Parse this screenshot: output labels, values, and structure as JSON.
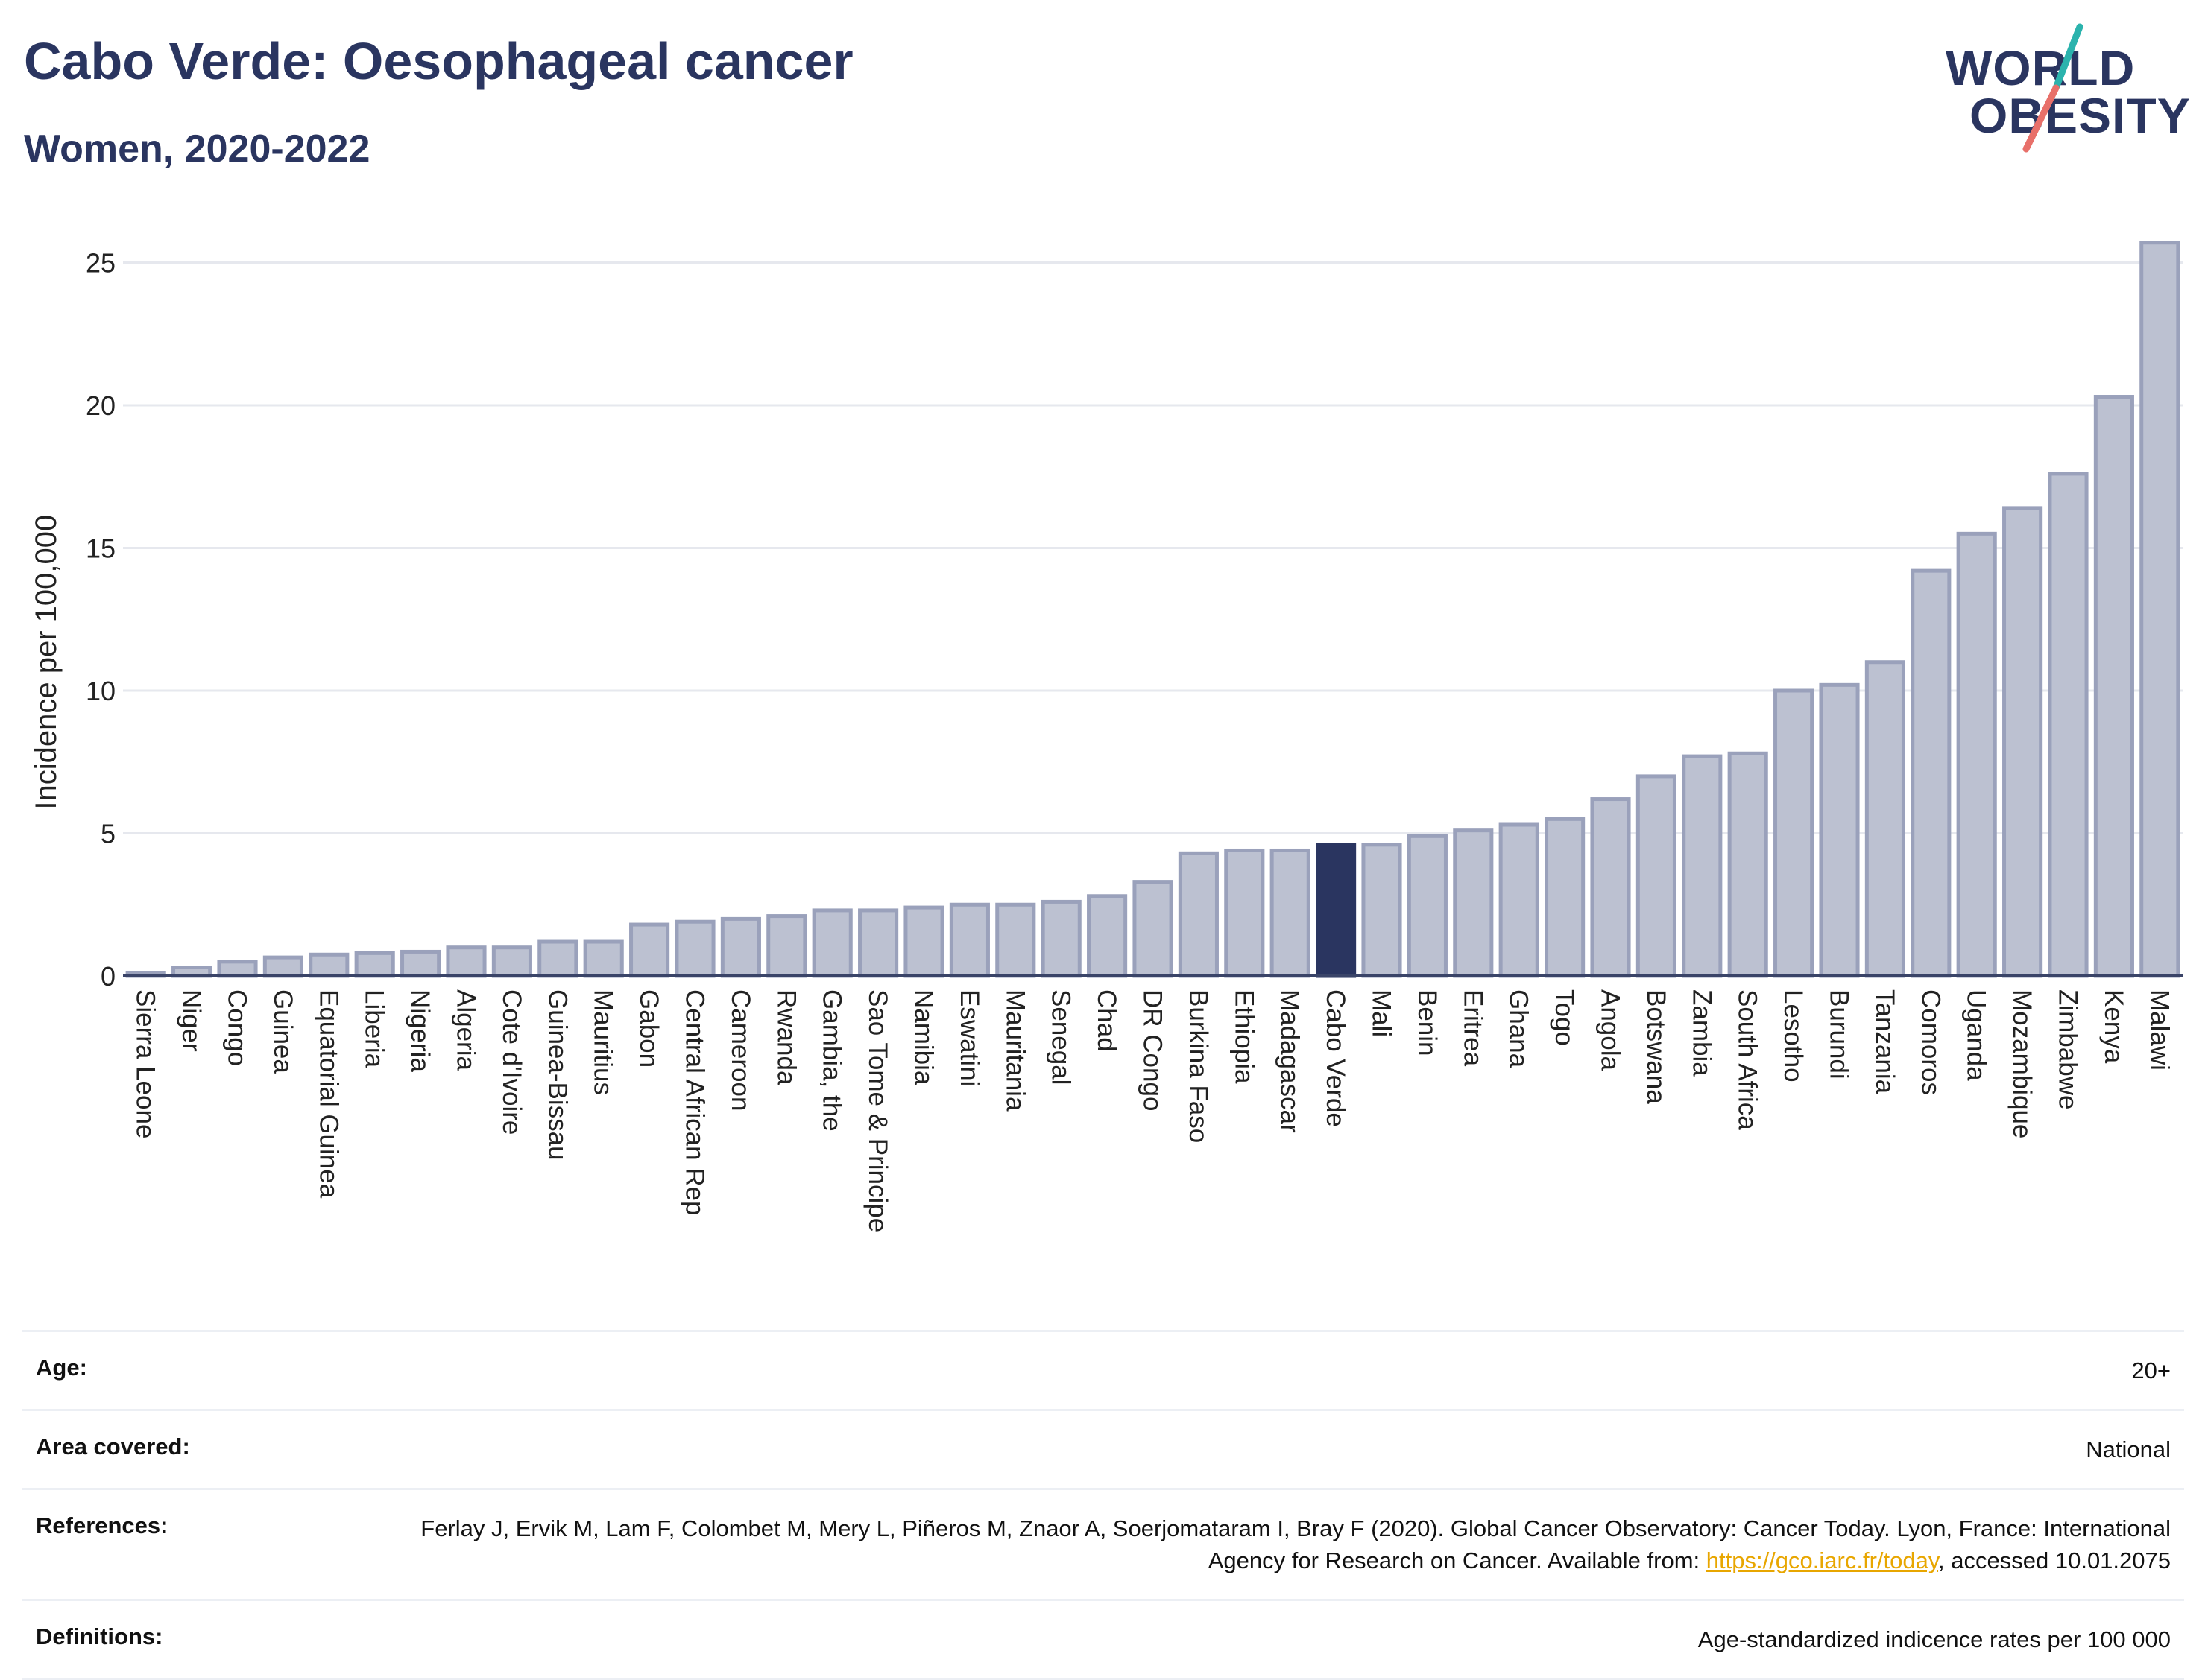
{
  "header": {
    "title": "Cabo Verde: Oesophageal cancer",
    "subtitle": "Women, 2020-2022"
  },
  "logo": {
    "line1": "WORLD",
    "line2": "OBESITY",
    "text_color": "#2a3560",
    "slash_color_top": "#2bb3ad",
    "slash_color_bottom": "#e8706a"
  },
  "colors": {
    "bar_fill": "#bcc1d1",
    "bar_stroke": "#9aa1bb",
    "highlight": "#2a3560",
    "grid": "#e6e8ee"
  },
  "chart_data": {
    "type": "bar",
    "title": "Cabo Verde: Oesophageal cancer",
    "subtitle": "Women, 2020-2022",
    "ylabel": "Incidence per 100,000",
    "xlabel": "",
    "ylim": [
      0,
      26
    ],
    "yticks": [
      0,
      5,
      10,
      15,
      20,
      25
    ],
    "grid": true,
    "highlight": "Cabo Verde",
    "categories": [
      "Sierra Leone",
      "Niger",
      "Congo",
      "Guinea",
      "Equatorial Guinea",
      "Liberia",
      "Nigeria",
      "Algeria",
      "Cote d'Ivoire",
      "Guinea-Bissau",
      "Mauritius",
      "Gabon",
      "Central African Rep",
      "Cameroon",
      "Rwanda",
      "Gambia, the",
      "Sao Tome & Principe",
      "Namibia",
      "Eswatini",
      "Mauritania",
      "Senegal",
      "Chad",
      "DR Congo",
      "Burkina Faso",
      "Ethiopia",
      "Madagascar",
      "Cabo Verde",
      "Mali",
      "Benin",
      "Eritrea",
      "Ghana",
      "Togo",
      "Angola",
      "Botswana",
      "Zambia",
      "South Africa",
      "Lesotho",
      "Burundi",
      "Tanzania",
      "Comoros",
      "Uganda",
      "Mozambique",
      "Zimbabwe",
      "Kenya",
      "Malawi"
    ],
    "values": [
      0.1,
      0.3,
      0.5,
      0.65,
      0.75,
      0.8,
      0.85,
      1.0,
      1.0,
      1.2,
      1.2,
      1.8,
      1.9,
      2.0,
      2.1,
      2.3,
      2.3,
      2.4,
      2.5,
      2.5,
      2.6,
      2.8,
      3.3,
      4.3,
      4.4,
      4.4,
      4.6,
      4.6,
      4.9,
      5.1,
      5.3,
      5.5,
      6.2,
      7.0,
      7.7,
      7.8,
      10.0,
      10.2,
      11.0,
      14.2,
      15.5,
      16.4,
      17.6,
      20.3,
      25.7
    ]
  },
  "info": [
    {
      "key": "Age:",
      "value": "20+"
    },
    {
      "key": "Area covered:",
      "value": "National"
    },
    {
      "key": "References:",
      "value_before": "Ferlay J, Ervik M, Lam F, Colombet M, Mery L, Piñeros M, Znaor A, Soerjomataram I, Bray F (2020). Global Cancer Observatory: Cancer Today. Lyon, France: International Agency for Research on Cancer. Available from: ",
      "link": "https://gco.iarc.fr/today",
      "value_after": ", accessed 10.01.2075"
    },
    {
      "key": "Definitions:",
      "value": "Age-standardized indicence rates per 100 000"
    }
  ]
}
